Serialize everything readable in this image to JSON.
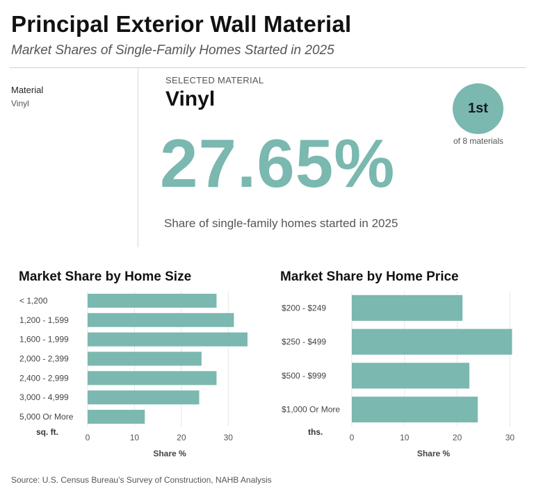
{
  "header": {
    "title": "Principal Exterior Wall Material",
    "subtitle": "Market Shares of Single-Family Homes Started in 2025"
  },
  "filter": {
    "label": "Material",
    "value": "Vinyl"
  },
  "selected": {
    "label": "SELECTED MATERIAL",
    "name": "Vinyl",
    "value": "27.65%",
    "caption": "Share of single-family homes started in 2025",
    "rank": "1st",
    "rank_caption": "of 8 materials"
  },
  "colors": {
    "accent": "#7ab8b0",
    "grid": "#e6e6e6"
  },
  "chart_data": [
    {
      "type": "bar",
      "orientation": "horizontal",
      "title": "Market Share by Home Size",
      "categories": [
        "< 1,200",
        "1,200 - 1,599",
        "1,600 - 1,999",
        "2,000 - 2,399",
        "2,400 - 2,999",
        "3,000 - 4,999",
        "5,000 Or More"
      ],
      "values": [
        27.5,
        31.2,
        34.1,
        24.3,
        27.5,
        23.8,
        12.2
      ],
      "category_axis_label": "sq. ft.",
      "xlabel": "Share %",
      "xticks": [
        0,
        10,
        20,
        30
      ],
      "xlim": [
        0,
        35
      ],
      "grid": true
    },
    {
      "type": "bar",
      "orientation": "horizontal",
      "title": "Market Share by Home Price",
      "categories": [
        "$200 - $249",
        "$250 - $499",
        "$500 - $999",
        "$1,000 Or More"
      ],
      "values": [
        21.0,
        30.4,
        22.3,
        23.9
      ],
      "category_axis_label": "ths.",
      "xlabel": "Share %",
      "xticks": [
        0,
        10,
        20,
        30
      ],
      "xlim": [
        0,
        31
      ],
      "grid": true
    }
  ],
  "footer": {
    "source": "Source: U.S. Census Bureau’s Survey of Construction, NAHB Analysis"
  }
}
